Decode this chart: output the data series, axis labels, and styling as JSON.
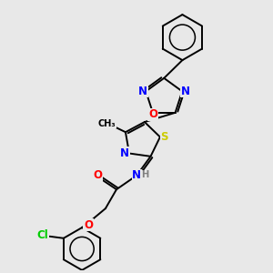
{
  "background_color": "#e8e8e8",
  "bond_color": "#000000",
  "atom_colors": {
    "N": "#0000ff",
    "O": "#ff0000",
    "S": "#cccc00",
    "Cl": "#00cc00",
    "C": "#000000",
    "H": "#808080"
  },
  "lw": 1.4,
  "fs": 8.5
}
